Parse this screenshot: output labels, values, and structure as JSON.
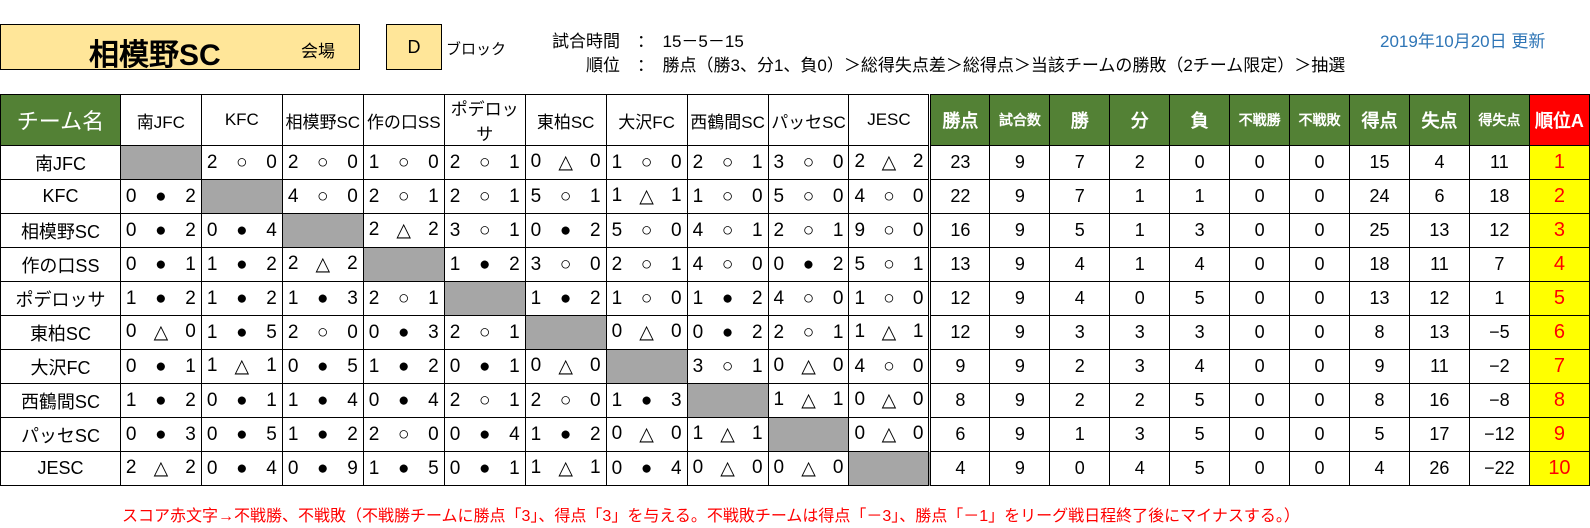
{
  "header": {
    "venue_name": "相模野SC",
    "venue_label": "会場",
    "block": "D",
    "block_label": "ブロック",
    "match_time_label": "試合時間　：　15－5－15",
    "ranking_rule": "順位　：　勝点（勝3、分1、負0）＞総得失点差＞総得点＞当該チームの勝敗（2チーム限定）＞抽選",
    "updated": "2019年10月20日 更新"
  },
  "table": {
    "team_header": "チーム名",
    "stat_headers": [
      "勝点",
      "試合数",
      "勝",
      "分",
      "負",
      "不戦勝",
      "不戦敗",
      "得点",
      "失点",
      "得失点",
      "順位A"
    ],
    "teams": [
      "南JFC",
      "KFC",
      "相模野SC",
      "作の口SS",
      "ポデロッサ",
      "東柏SC",
      "大沢FC",
      "西鶴間SC",
      "パッセSC",
      "JESC"
    ],
    "results": [
      [
        null,
        [
          "2",
          "○",
          "0"
        ],
        [
          "2",
          "○",
          "0"
        ],
        [
          "1",
          "○",
          "0"
        ],
        [
          "2",
          "○",
          "1"
        ],
        [
          "0",
          "△",
          "0"
        ],
        [
          "1",
          "○",
          "0"
        ],
        [
          "2",
          "○",
          "1"
        ],
        [
          "3",
          "○",
          "0"
        ],
        [
          "2",
          "△",
          "2"
        ]
      ],
      [
        [
          "0",
          "●",
          "2"
        ],
        null,
        [
          "4",
          "○",
          "0"
        ],
        [
          "2",
          "○",
          "1"
        ],
        [
          "2",
          "○",
          "1"
        ],
        [
          "5",
          "○",
          "1"
        ],
        [
          "1",
          "△",
          "1"
        ],
        [
          "1",
          "○",
          "0"
        ],
        [
          "5",
          "○",
          "0"
        ],
        [
          "4",
          "○",
          "0"
        ]
      ],
      [
        [
          "0",
          "●",
          "2"
        ],
        [
          "0",
          "●",
          "4"
        ],
        null,
        [
          "2",
          "△",
          "2"
        ],
        [
          "3",
          "○",
          "1"
        ],
        [
          "0",
          "●",
          "2"
        ],
        [
          "5",
          "○",
          "0"
        ],
        [
          "4",
          "○",
          "1"
        ],
        [
          "2",
          "○",
          "1"
        ],
        [
          "9",
          "○",
          "0"
        ]
      ],
      [
        [
          "0",
          "●",
          "1"
        ],
        [
          "1",
          "●",
          "2"
        ],
        [
          "2",
          "△",
          "2"
        ],
        null,
        [
          "1",
          "●",
          "2"
        ],
        [
          "3",
          "○",
          "0"
        ],
        [
          "2",
          "○",
          "1"
        ],
        [
          "4",
          "○",
          "0"
        ],
        [
          "0",
          "●",
          "2"
        ],
        [
          "5",
          "○",
          "1"
        ]
      ],
      [
        [
          "1",
          "●",
          "2"
        ],
        [
          "1",
          "●",
          "2"
        ],
        [
          "1",
          "●",
          "3"
        ],
        [
          "2",
          "○",
          "1"
        ],
        null,
        [
          "1",
          "●",
          "2"
        ],
        [
          "1",
          "○",
          "0"
        ],
        [
          "1",
          "●",
          "2"
        ],
        [
          "4",
          "○",
          "0"
        ],
        [
          "1",
          "○",
          "0"
        ]
      ],
      [
        [
          "0",
          "△",
          "0"
        ],
        [
          "1",
          "●",
          "5"
        ],
        [
          "2",
          "○",
          "0"
        ],
        [
          "0",
          "●",
          "3"
        ],
        [
          "2",
          "○",
          "1"
        ],
        null,
        [
          "0",
          "△",
          "0"
        ],
        [
          "0",
          "●",
          "2"
        ],
        [
          "2",
          "○",
          "1"
        ],
        [
          "1",
          "△",
          "1"
        ]
      ],
      [
        [
          "0",
          "●",
          "1"
        ],
        [
          "1",
          "△",
          "1"
        ],
        [
          "0",
          "●",
          "5"
        ],
        [
          "1",
          "●",
          "2"
        ],
        [
          "0",
          "●",
          "1"
        ],
        [
          "0",
          "△",
          "0"
        ],
        null,
        [
          "3",
          "○",
          "1"
        ],
        [
          "0",
          "△",
          "0"
        ],
        [
          "4",
          "○",
          "0"
        ]
      ],
      [
        [
          "1",
          "●",
          "2"
        ],
        [
          "0",
          "●",
          "1"
        ],
        [
          "1",
          "●",
          "4"
        ],
        [
          "0",
          "●",
          "4"
        ],
        [
          "2",
          "○",
          "1"
        ],
        [
          "2",
          "○",
          "0"
        ],
        [
          "1",
          "●",
          "3"
        ],
        null,
        [
          "1",
          "△",
          "1"
        ],
        [
          "0",
          "△",
          "0"
        ]
      ],
      [
        [
          "0",
          "●",
          "3"
        ],
        [
          "0",
          "●",
          "5"
        ],
        [
          "1",
          "●",
          "2"
        ],
        [
          "2",
          "○",
          "0"
        ],
        [
          "0",
          "●",
          "4"
        ],
        [
          "1",
          "●",
          "2"
        ],
        [
          "0",
          "△",
          "0"
        ],
        [
          "1",
          "△",
          "1"
        ],
        null,
        [
          "0",
          "△",
          "0"
        ]
      ],
      [
        [
          "2",
          "△",
          "2"
        ],
        [
          "0",
          "●",
          "4"
        ],
        [
          "0",
          "●",
          "9"
        ],
        [
          "1",
          "●",
          "5"
        ],
        [
          "0",
          "●",
          "1"
        ],
        [
          "1",
          "△",
          "1"
        ],
        [
          "0",
          "●",
          "4"
        ],
        [
          "0",
          "△",
          "0"
        ],
        [
          "0",
          "△",
          "0"
        ],
        null
      ]
    ],
    "stats": [
      [
        "23",
        "9",
        "7",
        "2",
        "0",
        "0",
        "0",
        "15",
        "4",
        "11",
        "1"
      ],
      [
        "22",
        "9",
        "7",
        "1",
        "1",
        "0",
        "0",
        "24",
        "6",
        "18",
        "2"
      ],
      [
        "16",
        "9",
        "5",
        "1",
        "3",
        "0",
        "0",
        "25",
        "13",
        "12",
        "3"
      ],
      [
        "13",
        "9",
        "4",
        "1",
        "4",
        "0",
        "0",
        "18",
        "11",
        "7",
        "4"
      ],
      [
        "12",
        "9",
        "4",
        "0",
        "5",
        "0",
        "0",
        "13",
        "12",
        "1",
        "5"
      ],
      [
        "12",
        "9",
        "3",
        "3",
        "3",
        "0",
        "0",
        "8",
        "13",
        "−5",
        "6"
      ],
      [
        "9",
        "9",
        "2",
        "3",
        "4",
        "0",
        "0",
        "9",
        "11",
        "−2",
        "7"
      ],
      [
        "8",
        "9",
        "2",
        "2",
        "5",
        "0",
        "0",
        "8",
        "16",
        "−8",
        "8"
      ],
      [
        "6",
        "9",
        "1",
        "3",
        "5",
        "0",
        "0",
        "5",
        "17",
        "−12",
        "9"
      ],
      [
        "4",
        "9",
        "0",
        "4",
        "5",
        "0",
        "0",
        "4",
        "26",
        "−22",
        "10"
      ]
    ]
  },
  "footer_note": "スコア赤文字→不戦勝、不戦敗（不戦勝チームに勝点「3」、得点「3」を与える。不戦敗チームは得点「－3」、勝点「－1」をリーグ戦日程終了後にマイナスする。）",
  "colors": {
    "header_green": "#538135",
    "rank_header": "#ff0000",
    "rank_cell": "#ffff00",
    "rank_text": "#ff0000",
    "title_box": "#ffe699",
    "self_cell": "#a6a6a6",
    "date_text": "#2e75b6",
    "note_text": "#ff0000"
  }
}
